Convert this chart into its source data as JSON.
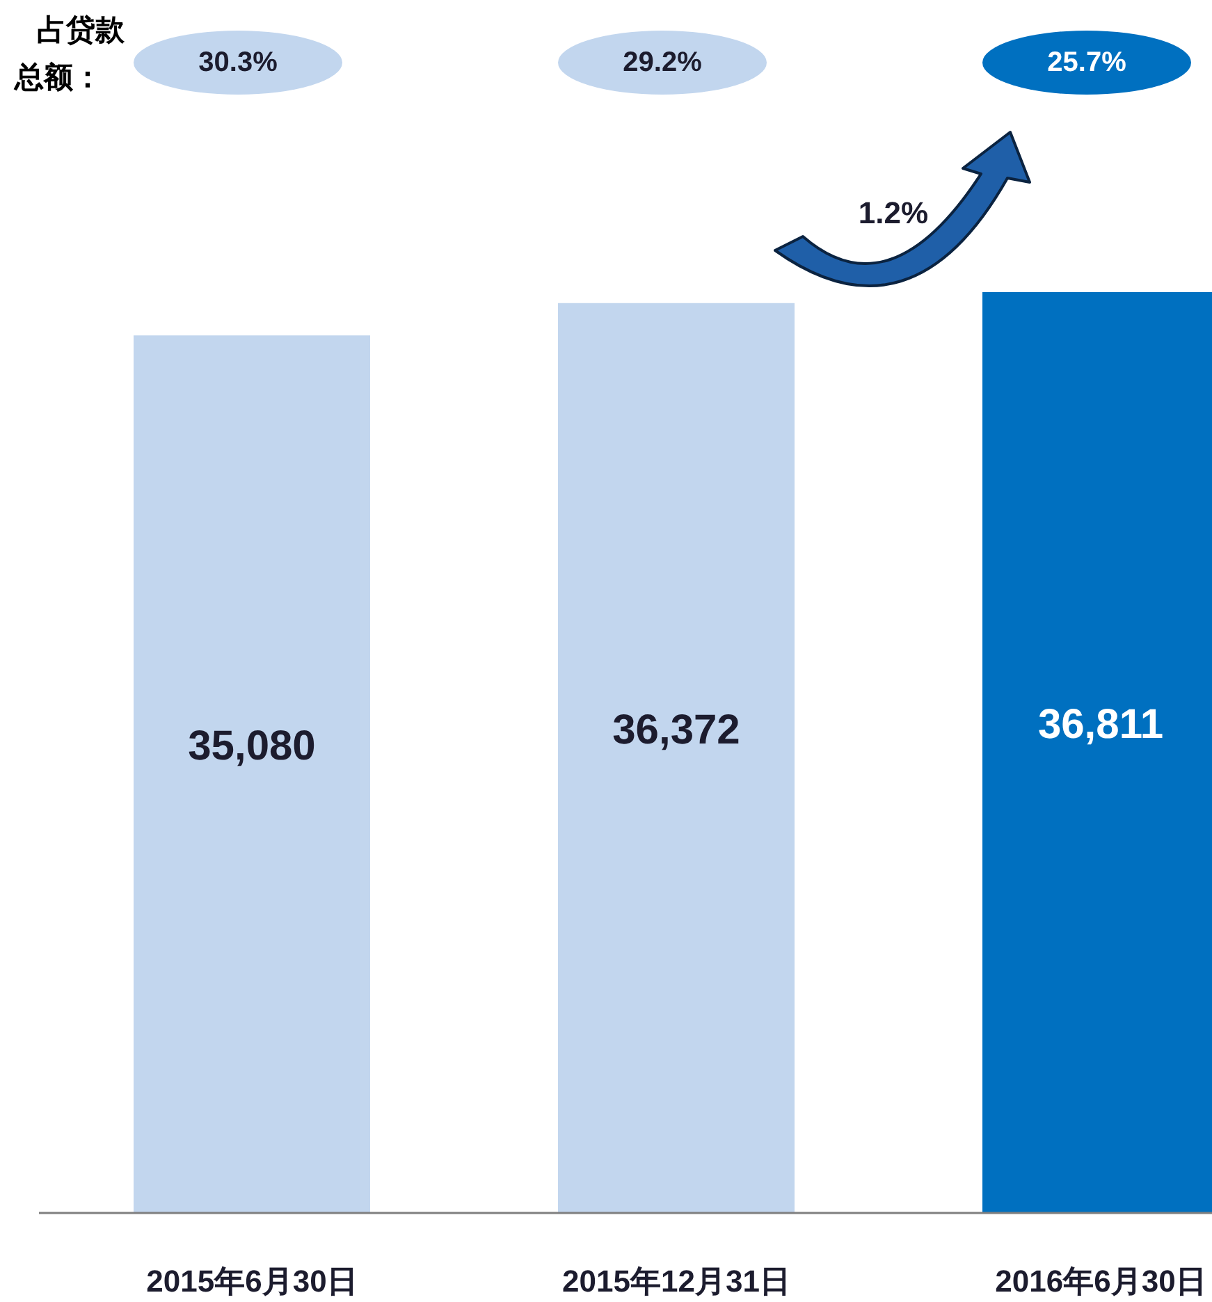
{
  "chart_data": {
    "type": "bar",
    "categories": [
      "2015年6月30日",
      "2015年12月31日",
      "2016年6月30日"
    ],
    "values": [
      35080,
      36372,
      36811
    ],
    "colors": [
      "#c2d6ee",
      "#c2d6ee",
      "#0070c0"
    ],
    "value_labels": [
      "35,080",
      "36,372",
      "36,811"
    ],
    "annotations": [
      "占贷款总额：",
      "30.3%",
      "29.2%",
      "25.7%",
      "1.2%"
    ]
  }
}
